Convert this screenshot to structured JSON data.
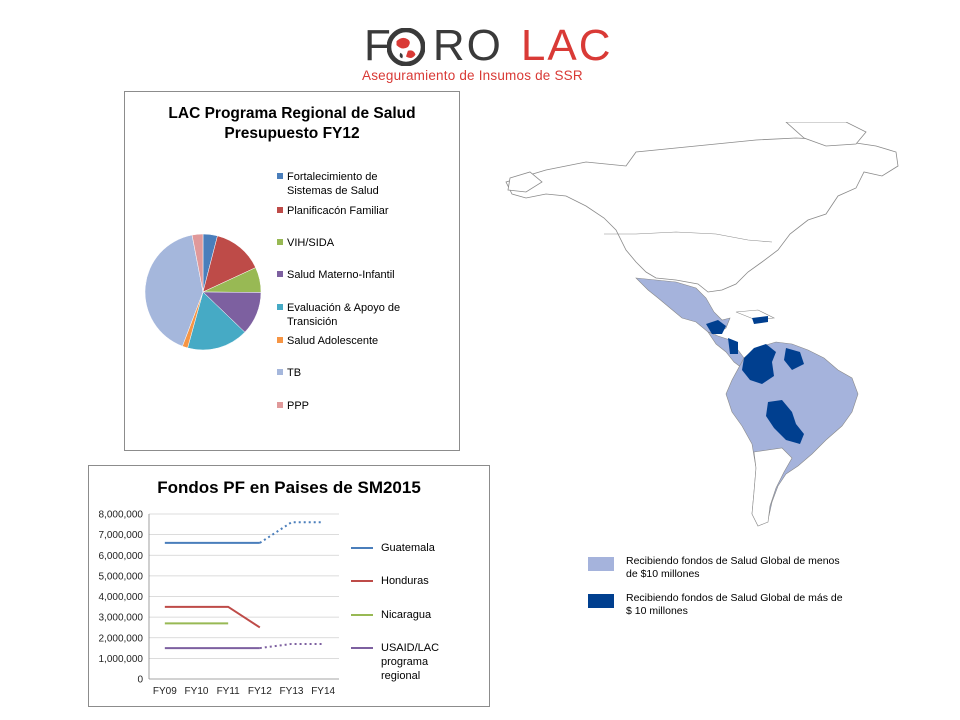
{
  "logo": {
    "word1": "F   RO",
    "word2": "LAC",
    "tagline": "Aseguramiento de Insumos de SSR"
  },
  "colors": {
    "fortalecimiento": "#4a7ebb",
    "planificacion": "#be4b48",
    "vih": "#98b954",
    "materno": "#7d60a0",
    "evaluacion": "#46aac5",
    "adolescente": "#f69544",
    "tb": "#a5b7dc",
    "ppp": "#e0999a",
    "map_light": "#a5b3dc",
    "map_dark": "#003f8f",
    "land_other": "#ffffff"
  },
  "chart_data": [
    {
      "type": "pie",
      "title": "LAC Programa Regional de Salud Presupuesto FY12",
      "title_lines": [
        "LAC Programa Regional de Salud",
        "Presupuesto FY12"
      ],
      "legend_position": "right",
      "slices": [
        {
          "label": "Fortalecimiento de Sistemas de Salud",
          "label_lines": [
            "Fortalecimiento de",
            "Sistemas de Salud"
          ],
          "value": 4,
          "color_key": "fortalecimiento"
        },
        {
          "label": "Planificacón Familiar",
          "label_lines": [
            "Planificacón Familiar"
          ],
          "value": 14,
          "color_key": "planificacion"
        },
        {
          "label": "VIH/SIDA",
          "label_lines": [
            "VIH/SIDA"
          ],
          "value": 7,
          "color_key": "vih"
        },
        {
          "label": "Salud Materno-Infantil",
          "label_lines": [
            "Salud Materno-Infantil"
          ],
          "value": 12,
          "color_key": "materno"
        },
        {
          "label": "Evaluación & Apoyo de Transición",
          "label_lines": [
            "Evaluación & Apoyo de",
            "Transición"
          ],
          "value": 17,
          "color_key": "evaluacion"
        },
        {
          "label": "Salud Adolescente",
          "label_lines": [
            "Salud Adolescente"
          ],
          "value": 1.5,
          "color_key": "adolescente"
        },
        {
          "label": "TB",
          "label_lines": [
            "TB"
          ],
          "value": 41,
          "color_key": "tb"
        },
        {
          "label": "PPP",
          "label_lines": [
            "PPP"
          ],
          "value": 3,
          "color_key": "ppp"
        }
      ]
    },
    {
      "type": "line",
      "title": "Fondos PF en Paises de SM2015",
      "categories": [
        "FY09",
        "FY10",
        "FY11",
        "FY12",
        "FY13",
        "FY14"
      ],
      "yticks": [
        "0",
        "1,000,000",
        "2,000,000",
        "3,000,000",
        "4,000,000",
        "5,000,000",
        "6,000,000",
        "7,000,000",
        "8,000,000"
      ],
      "ylim": [
        0,
        8000000
      ],
      "grid": true,
      "legend_position": "right",
      "series": [
        {
          "name": "Guatemala",
          "label_lines": [
            "Guatemala"
          ],
          "color": "#4a7ebb",
          "values": [
            6600000,
            6600000,
            6600000,
            6600000,
            7600000,
            7600000
          ],
          "solid_until_index": 3
        },
        {
          "name": "Honduras",
          "label_lines": [
            "Honduras"
          ],
          "color": "#be4b48",
          "values": [
            3500000,
            3500000,
            3500000,
            2500000,
            null,
            null
          ],
          "solid_until_index": 3
        },
        {
          "name": "Nicaragua",
          "label_lines": [
            "Nicaragua"
          ],
          "color": "#98b954",
          "values": [
            2700000,
            2700000,
            2700000,
            null,
            null,
            null
          ],
          "solid_until_index": 2
        },
        {
          "name": "USAID/LAC programa regional",
          "label_lines": [
            "USAID/LAC programa",
            "regional"
          ],
          "color": "#7d60a0",
          "values": [
            1500000,
            1500000,
            1500000,
            1500000,
            1700000,
            1700000
          ],
          "solid_until_index": 3
        }
      ]
    }
  ],
  "map": {
    "legend": [
      {
        "label_lines": [
          "Recibiendo fondos de Salud Global de menos",
          "de $10 millones"
        ],
        "color_key": "map_light"
      },
      {
        "label_lines": [
          "Recibiendo fondos de Salud Global de más de",
          "$ 10 millones"
        ],
        "color_key": "map_dark"
      }
    ]
  }
}
